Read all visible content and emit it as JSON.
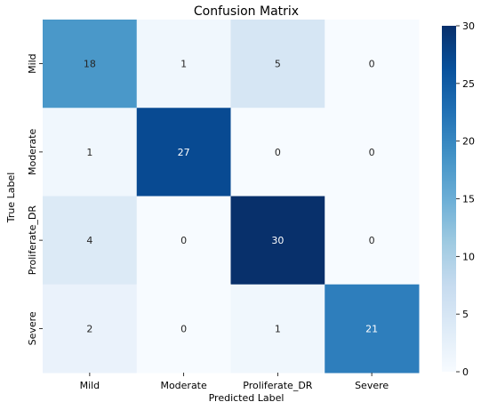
{
  "chart_data": {
    "type": "heatmap",
    "title": "Confusion Matrix",
    "xlabel": "Predicted Label",
    "ylabel": "True Label",
    "x_categories": [
      "Mild",
      "Moderate",
      "Proliferate_DR",
      "Severe"
    ],
    "y_categories": [
      "Mild",
      "Moderate",
      "Proliferate_DR",
      "Severe"
    ],
    "values": [
      [
        18,
        1,
        5,
        0
      ],
      [
        1,
        27,
        0,
        0
      ],
      [
        4,
        0,
        30,
        0
      ],
      [
        2,
        0,
        1,
        21
      ]
    ],
    "colorbar": {
      "range": [
        0,
        30
      ],
      "ticks": [
        "0",
        "5",
        "10",
        "15",
        "20",
        "25",
        "30"
      ],
      "colormap": "Blues"
    }
  }
}
